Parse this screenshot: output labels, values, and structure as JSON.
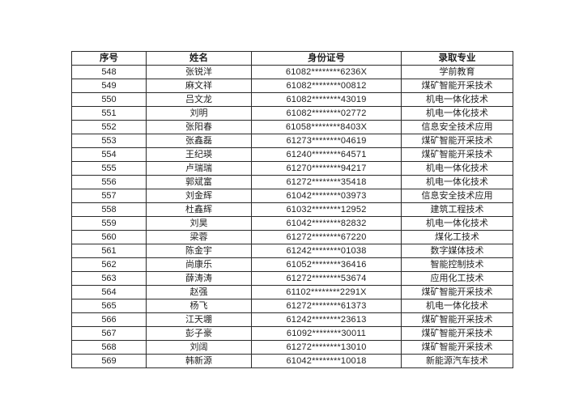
{
  "page": {
    "background": "#ffffff",
    "text_color": "#1f1f1f",
    "border_color": "#2b2b2b"
  },
  "table": {
    "headers": [
      "序号",
      "姓名",
      "身份证号",
      "录取专业"
    ],
    "rows": [
      [
        "548",
        "张锐洋",
        "61082********6236X",
        "学前教育"
      ],
      [
        "549",
        "麻文祥",
        "61082********00812",
        "煤矿智能开采技术"
      ],
      [
        "550",
        "吕文龙",
        "61082********43019",
        "机电一体化技术"
      ],
      [
        "551",
        "刘明",
        "61082********02772",
        "机电一体化技术"
      ],
      [
        "552",
        "张阳春",
        "61058********8403X",
        "信息安全技术应用"
      ],
      [
        "553",
        "张鑫磊",
        "61273********04619",
        "煤矿智能开采技术"
      ],
      [
        "554",
        "王纪瑛",
        "61240********64571",
        "煤矿智能开采技术"
      ],
      [
        "555",
        "卢瑞瑞",
        "61270********94217",
        "机电一体化技术"
      ],
      [
        "556",
        "郭斌富",
        "61272********35418",
        "机电一体化技术"
      ],
      [
        "557",
        "刘金辉",
        "61042********03973",
        "信息安全技术应用"
      ],
      [
        "558",
        "杜鑫辉",
        "61032********12952",
        "建筑工程技术"
      ],
      [
        "559",
        "刘昊",
        "61042********82832",
        "机电一体化技术"
      ],
      [
        "560",
        "梁蓉",
        "61272********67220",
        "煤化工技术"
      ],
      [
        "561",
        "陈金宇",
        "61242********01038",
        "数字媒体技术"
      ],
      [
        "562",
        "尚康乐",
        "61052********36416",
        "智能控制技术"
      ],
      [
        "563",
        "薛涛涛",
        "61272********53674",
        "应用化工技术"
      ],
      [
        "564",
        "赵强",
        "61102********2291X",
        "煤矿智能开采技术"
      ],
      [
        "565",
        "杨飞",
        "61272********61373",
        "机电一体化技术"
      ],
      [
        "566",
        "江天堋",
        "61242********23613",
        "煤矿智能开采技术"
      ],
      [
        "567",
        "彭子豪",
        "61092********30011",
        "煤矿智能开采技术"
      ],
      [
        "568",
        "刘阔",
        "61272********13010",
        "煤矿智能开采技术"
      ],
      [
        "569",
        "韩新源",
        "61042********10018",
        "新能源汽车技术"
      ]
    ]
  }
}
